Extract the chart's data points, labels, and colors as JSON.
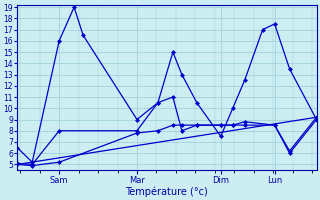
{
  "title": "Température (°c)",
  "background_color": "#cceef2",
  "grid_color": "#99ccd8",
  "line_color": "#0000cc",
  "ylim": [
    5,
    19
  ],
  "yticks": [
    5,
    6,
    7,
    8,
    9,
    10,
    11,
    12,
    13,
    14,
    15,
    16,
    17,
    18,
    19
  ],
  "day_labels": [
    "Sam",
    "Mar",
    "Dim",
    "Lun"
  ],
  "day_positions": [
    0.14,
    0.4,
    0.68,
    0.86
  ],
  "xlim": [
    0,
    1.0
  ],
  "line1_x": [
    0.0,
    0.05,
    0.14,
    0.19,
    0.22,
    0.4,
    0.47,
    0.52,
    0.55,
    0.6,
    0.68,
    0.72,
    0.76,
    0.82,
    0.86,
    0.91,
    1.0
  ],
  "line1_y": [
    6.5,
    5.2,
    16.0,
    19.0,
    16.5,
    9.0,
    10.5,
    15.0,
    13.0,
    10.5,
    7.5,
    10.0,
    12.5,
    17.0,
    17.5,
    13.5,
    9.0
  ],
  "line2_x": [
    0.0,
    0.05,
    0.14,
    0.4,
    0.47,
    0.52,
    0.55,
    0.6,
    0.68,
    0.72,
    0.76,
    0.86,
    0.91,
    1.0
  ],
  "line2_y": [
    5.1,
    5.0,
    8.0,
    8.0,
    10.5,
    11.0,
    8.0,
    8.5,
    8.5,
    8.5,
    8.5,
    8.5,
    6.0,
    9.0
  ],
  "line3_x": [
    0.0,
    0.05,
    0.14,
    0.4,
    0.47,
    0.52,
    0.55,
    0.6,
    0.68,
    0.72,
    0.76,
    0.86,
    0.91,
    1.0
  ],
  "line3_y": [
    5.0,
    4.9,
    5.2,
    7.8,
    8.0,
    8.5,
    8.5,
    8.5,
    8.5,
    8.5,
    8.8,
    8.5,
    6.2,
    9.2
  ],
  "line4_x": [
    0.0,
    1.0
  ],
  "line4_y": [
    5.0,
    9.2
  ]
}
